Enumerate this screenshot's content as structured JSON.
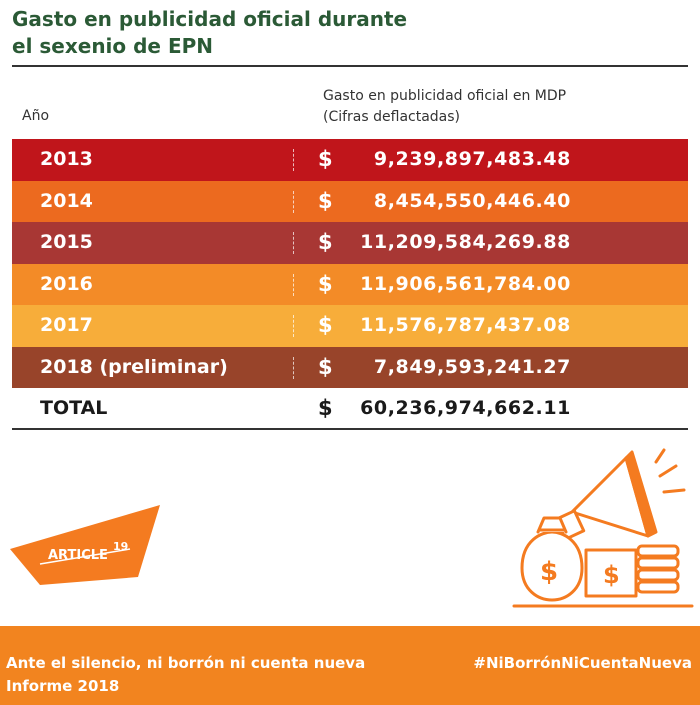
{
  "title": {
    "line1": "Gasto en publicidad oficial durante",
    "line2": "el sexenio de EPN"
  },
  "columns": {
    "year": "Año",
    "amount_line1": "Gasto en publicidad oficial en MDP",
    "amount_line2": "(Cifras deflactadas)"
  },
  "rows": [
    {
      "year": "2013",
      "currency": "$",
      "amount": "9,239,897,483.48",
      "color": "#c0151b"
    },
    {
      "year": "2014",
      "currency": "$",
      "amount": "8,454,550,446.40",
      "color": "#ec6a1f"
    },
    {
      "year": "2015",
      "currency": "$",
      "amount": "11,209,584,269.88",
      "color": "#a83734"
    },
    {
      "year": "2016",
      "currency": "$",
      "amount": "11,906,561,784.00",
      "color": "#f38b27"
    },
    {
      "year": "2017",
      "currency": "$",
      "amount": "11,576,787,437.08",
      "color": "#f7ad3a"
    },
    {
      "year": "2018 (preliminar)",
      "currency": "$",
      "amount": "7,849,593,241.27",
      "color": "#98442a"
    }
  ],
  "total": {
    "label": "TOTAL",
    "currency": "$",
    "amount": "60,236,974,662.11"
  },
  "logo": {
    "text": "ARTICLE",
    "superscript": "19",
    "color": "#f47b20"
  },
  "footer": {
    "line1": "Ante el silencio, ni borrón ni cuenta nueva",
    "line2": "Informe 2018",
    "hashtag": "#NiBorrónNiCuentaNueva",
    "color": "#f2841f"
  }
}
